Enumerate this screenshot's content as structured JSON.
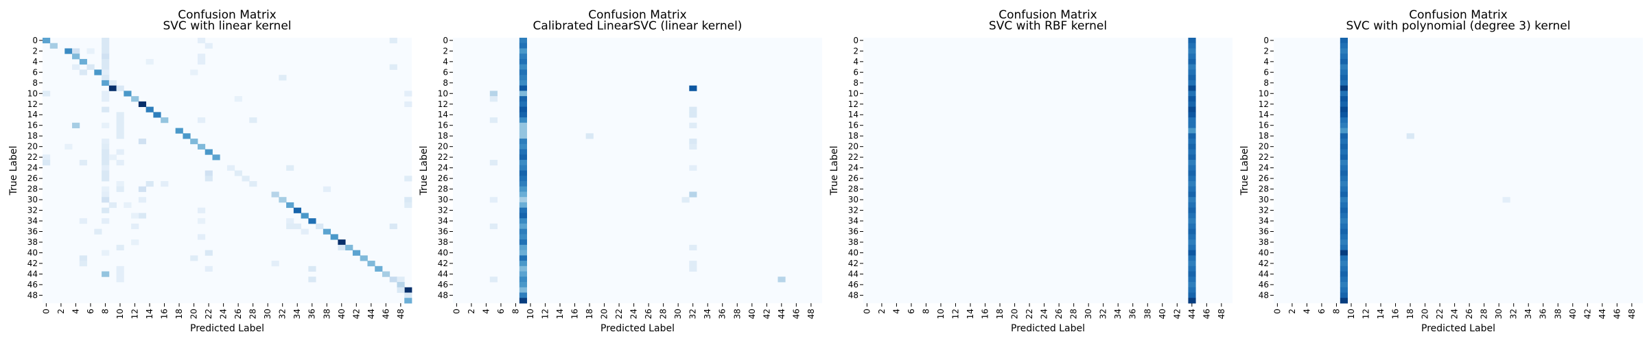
{
  "figure": {
    "colormap": "Blues",
    "colormap_low": "#f7fbff",
    "colormap_high": "#08306b",
    "xlabel": "Predicted Label",
    "ylabel": "True Label",
    "tick_labels": [
      "0",
      "2",
      "4",
      "6",
      "8",
      "10",
      "12",
      "14",
      "16",
      "18",
      "20",
      "22",
      "24",
      "26",
      "28",
      "30",
      "32",
      "34",
      "36",
      "38",
      "40",
      "42",
      "44",
      "46",
      "48"
    ]
  },
  "chart_data": [
    {
      "type": "heatmap",
      "title": [
        "Confusion Matrix",
        "SVC with linear kernel"
      ],
      "xlabel": "Predicted Label",
      "ylabel": "True Label",
      "n_classes": 50,
      "vmax": 1,
      "cells": [
        [
          0,
          0,
          0.55
        ],
        [
          0,
          8,
          0.15
        ],
        [
          0,
          21,
          0.1
        ],
        [
          0,
          47,
          0.12
        ],
        [
          1,
          1,
          0.35
        ],
        [
          1,
          8,
          0.15
        ],
        [
          1,
          22,
          0.1
        ],
        [
          2,
          3,
          0.65
        ],
        [
          2,
          4,
          0.2
        ],
        [
          2,
          6,
          0.08
        ],
        [
          2,
          8,
          0.15
        ],
        [
          3,
          4,
          0.45
        ],
        [
          3,
          8,
          0.2
        ],
        [
          3,
          21,
          0.1
        ],
        [
          4,
          5,
          0.5
        ],
        [
          4,
          8,
          0.15
        ],
        [
          4,
          14,
          0.08
        ],
        [
          4,
          21,
          0.1
        ],
        [
          5,
          4,
          0.1
        ],
        [
          5,
          6,
          0.15
        ],
        [
          5,
          8,
          0.15
        ],
        [
          5,
          47,
          0.12
        ],
        [
          6,
          5,
          0.15
        ],
        [
          6,
          7,
          0.6
        ],
        [
          6,
          8,
          0.1
        ],
        [
          6,
          20,
          0.08
        ],
        [
          7,
          8,
          0.15
        ],
        [
          7,
          32,
          0.12
        ],
        [
          8,
          8,
          0.55
        ],
        [
          8,
          9,
          0.12
        ],
        [
          9,
          9,
          1.0
        ],
        [
          9,
          10,
          0.15
        ],
        [
          10,
          0,
          0.12
        ],
        [
          10,
          11,
          0.6
        ],
        [
          10,
          8,
          0.1
        ],
        [
          10,
          49,
          0.1
        ],
        [
          11,
          12,
          0.4
        ],
        [
          11,
          8,
          0.1
        ],
        [
          11,
          26,
          0.08
        ],
        [
          12,
          13,
          1.0
        ],
        [
          12,
          49,
          0.1
        ],
        [
          13,
          8,
          0.15
        ],
        [
          13,
          14,
          0.7
        ],
        [
          14,
          15,
          0.7
        ],
        [
          14,
          10,
          0.12
        ],
        [
          15,
          10,
          0.12
        ],
        [
          15,
          16,
          0.4
        ],
        [
          15,
          21,
          0.1
        ],
        [
          15,
          28,
          0.12
        ],
        [
          16,
          4,
          0.35
        ],
        [
          16,
          10,
          0.12
        ],
        [
          16,
          8,
          0.08
        ],
        [
          17,
          10,
          0.12
        ],
        [
          17,
          18,
          0.6
        ],
        [
          18,
          19,
          0.6
        ],
        [
          18,
          10,
          0.12
        ],
        [
          19,
          13,
          0.2
        ],
        [
          19,
          20,
          0.45
        ],
        [
          19,
          8,
          0.1
        ],
        [
          20,
          3,
          0.08
        ],
        [
          20,
          8,
          0.12
        ],
        [
          20,
          21,
          0.45
        ],
        [
          21,
          8,
          0.15
        ],
        [
          21,
          22,
          0.6
        ],
        [
          21,
          10,
          0.1
        ],
        [
          22,
          8,
          0.15
        ],
        [
          22,
          9,
          0.08
        ],
        [
          22,
          23,
          0.55
        ],
        [
          22,
          0,
          0.1
        ],
        [
          23,
          0,
          0.15
        ],
        [
          23,
          5,
          0.12
        ],
        [
          23,
          8,
          0.15
        ],
        [
          23,
          10,
          0.1
        ],
        [
          24,
          8,
          0.1
        ],
        [
          24,
          25,
          0.1
        ],
        [
          24,
          33,
          0.12
        ],
        [
          25,
          8,
          0.15
        ],
        [
          25,
          22,
          0.2
        ],
        [
          25,
          26,
          0.12
        ],
        [
          26,
          8,
          0.15
        ],
        [
          26,
          22,
          0.15
        ],
        [
          26,
          27,
          0.12
        ],
        [
          26,
          49,
          0.12
        ],
        [
          27,
          14,
          0.15
        ],
        [
          27,
          16,
          0.1
        ],
        [
          27,
          28,
          0.12
        ],
        [
          27,
          10,
          0.08
        ],
        [
          28,
          10,
          0.12
        ],
        [
          28,
          13,
          0.2
        ],
        [
          28,
          8,
          0.08
        ],
        [
          28,
          38,
          0.1
        ],
        [
          29,
          31,
          0.3
        ],
        [
          29,
          8,
          0.1
        ],
        [
          30,
          8,
          0.2
        ],
        [
          30,
          32,
          0.35
        ],
        [
          30,
          13,
          0.1
        ],
        [
          30,
          49,
          0.15
        ],
        [
          31,
          9,
          0.12
        ],
        [
          31,
          11,
          0.08
        ],
        [
          31,
          33,
          0.55
        ],
        [
          31,
          49,
          0.12
        ],
        [
          32,
          8,
          0.15
        ],
        [
          32,
          34,
          0.8
        ],
        [
          32,
          21,
          0.1
        ],
        [
          33,
          13,
          0.15
        ],
        [
          33,
          35,
          0.6
        ],
        [
          33,
          12,
          0.08
        ],
        [
          34,
          36,
          0.75
        ],
        [
          34,
          8,
          0.1
        ],
        [
          34,
          21,
          0.08
        ],
        [
          34,
          5,
          0.1
        ],
        [
          34,
          33,
          0.1
        ],
        [
          35,
          12,
          0.1
        ],
        [
          35,
          33,
          0.12
        ],
        [
          35,
          34,
          0.12
        ],
        [
          35,
          37,
          0.15
        ],
        [
          35,
          47,
          0.15
        ],
        [
          36,
          7,
          0.12
        ],
        [
          36,
          38,
          0.55
        ],
        [
          36,
          35,
          0.1
        ],
        [
          37,
          39,
          0.6
        ],
        [
          37,
          21,
          0.1
        ],
        [
          38,
          40,
          1.0
        ],
        [
          38,
          12,
          0.08
        ],
        [
          39,
          40,
          0.15
        ],
        [
          39,
          41,
          0.45
        ],
        [
          39,
          10,
          0.12
        ],
        [
          40,
          22,
          0.15
        ],
        [
          40,
          42,
          0.55
        ],
        [
          40,
          8,
          0.08
        ],
        [
          41,
          5,
          0.15
        ],
        [
          41,
          20,
          0.12
        ],
        [
          41,
          43,
          0.45
        ],
        [
          42,
          5,
          0.12
        ],
        [
          42,
          31,
          0.1
        ],
        [
          42,
          44,
          0.45
        ],
        [
          43,
          36,
          0.15
        ],
        [
          43,
          45,
          0.5
        ],
        [
          43,
          10,
          0.1
        ],
        [
          43,
          22,
          0.1
        ],
        [
          44,
          8,
          0.4
        ],
        [
          44,
          46,
          0.35
        ],
        [
          44,
          10,
          0.1
        ],
        [
          45,
          36,
          0.15
        ],
        [
          45,
          47,
          0.25
        ],
        [
          45,
          10,
          0.1
        ],
        [
          45,
          48,
          0.12
        ],
        [
          46,
          48,
          0.3
        ],
        [
          47,
          49,
          1.0
        ],
        [
          47,
          48,
          0.15
        ],
        [
          48,
          49,
          0.15
        ],
        [
          49,
          49,
          0.5
        ]
      ]
    },
    {
      "type": "heatmap",
      "title": [
        "Confusion Matrix",
        "Calibrated LinearSVC (linear kernel)"
      ],
      "xlabel": "Predicted Label",
      "ylabel": "True Label",
      "n_classes": 50,
      "vmax": 1,
      "column_values": {
        "column": 9,
        "rows": [
          0.7,
          0.75,
          0.6,
          0.7,
          0.75,
          0.65,
          0.75,
          0.7,
          0.65,
          0.85,
          0.45,
          0.8,
          0.75,
          0.85,
          0.8,
          0.65,
          0.4,
          0.4,
          0.4,
          0.7,
          0.65,
          0.75,
          0.8,
          0.65,
          0.7,
          0.8,
          0.75,
          0.7,
          0.6,
          0.5,
          0.35,
          0.5,
          0.75,
          0.8,
          0.65,
          0.55,
          0.7,
          0.65,
          0.75,
          0.55,
          0.5,
          0.75,
          0.6,
          0.45,
          0.55,
          0.65,
          0.6,
          0.45,
          0.7,
          0.95
        ]
      },
      "cells": [
        [
          9,
          32,
          0.85
        ],
        [
          10,
          5,
          0.3
        ],
        [
          11,
          5,
          0.12
        ],
        [
          13,
          32,
          0.15
        ],
        [
          14,
          32,
          0.15
        ],
        [
          15,
          5,
          0.12
        ],
        [
          16,
          32,
          0.12
        ],
        [
          18,
          18,
          0.15
        ],
        [
          19,
          32,
          0.15
        ],
        [
          20,
          32,
          0.12
        ],
        [
          23,
          5,
          0.12
        ],
        [
          24,
          32,
          0.1
        ],
        [
          29,
          32,
          0.3
        ],
        [
          30,
          5,
          0.1
        ],
        [
          30,
          31,
          0.12
        ],
        [
          35,
          5,
          0.12
        ],
        [
          39,
          32,
          0.12
        ],
        [
          42,
          32,
          0.12
        ],
        [
          43,
          32,
          0.12
        ],
        [
          45,
          5,
          0.12
        ],
        [
          45,
          44,
          0.3
        ]
      ]
    },
    {
      "type": "heatmap",
      "title": [
        "Confusion Matrix",
        "SVC with RBF kernel"
      ],
      "xlabel": "Predicted Label",
      "ylabel": "True Label",
      "n_classes": 50,
      "vmax": 1,
      "column_values": {
        "column": 44,
        "rows": [
          0.8,
          0.75,
          0.7,
          0.75,
          0.8,
          0.7,
          0.75,
          0.8,
          0.75,
          0.9,
          0.75,
          0.85,
          0.8,
          0.9,
          0.85,
          0.75,
          0.75,
          0.6,
          0.8,
          0.75,
          0.8,
          0.75,
          0.8,
          0.7,
          0.75,
          0.8,
          0.75,
          0.7,
          0.75,
          0.8,
          0.7,
          0.75,
          0.8,
          0.75,
          0.7,
          0.75,
          0.8,
          0.75,
          0.7,
          0.75,
          0.85,
          0.75,
          0.7,
          0.75,
          0.8,
          0.75,
          0.7,
          0.75,
          0.8,
          0.95
        ]
      },
      "cells": []
    },
    {
      "type": "heatmap",
      "title": [
        "Confusion Matrix",
        "SVC with polynomial (degree 3) kernel"
      ],
      "xlabel": "Predicted Label",
      "ylabel": "True Label",
      "n_classes": 50,
      "vmax": 1,
      "column_values": {
        "column": 9,
        "rows": [
          0.8,
          0.75,
          0.7,
          0.75,
          0.8,
          0.7,
          0.75,
          0.8,
          0.75,
          0.95,
          0.75,
          0.85,
          0.8,
          0.9,
          0.85,
          0.75,
          0.7,
          0.6,
          0.8,
          0.75,
          0.8,
          0.75,
          0.8,
          0.7,
          0.75,
          0.8,
          0.75,
          0.7,
          0.75,
          0.8,
          0.7,
          0.75,
          0.8,
          0.75,
          0.7,
          0.75,
          0.8,
          0.75,
          0.7,
          0.75,
          0.95,
          0.75,
          0.7,
          0.75,
          0.8,
          0.75,
          0.7,
          0.75,
          0.8,
          0.95
        ]
      },
      "cells": [
        [
          18,
          18,
          0.15
        ],
        [
          30,
          31,
          0.1
        ]
      ]
    }
  ]
}
